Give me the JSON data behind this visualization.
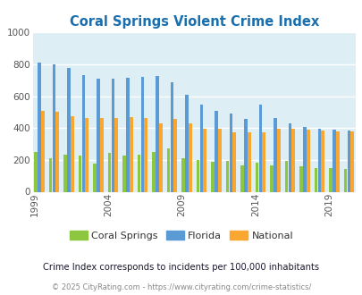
{
  "title": "Coral Springs Violent Crime Index",
  "years": [
    1999,
    2000,
    2001,
    2002,
    2003,
    2004,
    2005,
    2006,
    2007,
    2008,
    2009,
    2010,
    2011,
    2012,
    2013,
    2014,
    2015,
    2016,
    2017,
    2018,
    2019,
    2020
  ],
  "coral_springs": [
    250,
    210,
    235,
    225,
    175,
    245,
    225,
    235,
    250,
    270,
    210,
    200,
    190,
    195,
    165,
    180,
    165,
    195,
    160,
    150,
    150,
    145
  ],
  "florida": [
    810,
    800,
    775,
    735,
    710,
    710,
    715,
    720,
    725,
    690,
    610,
    545,
    510,
    490,
    460,
    545,
    465,
    430,
    405,
    395,
    390,
    385
  ],
  "national": [
    510,
    500,
    475,
    465,
    465,
    465,
    470,
    465,
    430,
    455,
    430,
    395,
    395,
    375,
    375,
    375,
    395,
    395,
    390,
    385,
    380,
    380
  ],
  "ylim": [
    0,
    1000
  ],
  "yticks": [
    0,
    200,
    400,
    600,
    800,
    1000
  ],
  "color_coral": "#8dc63f",
  "color_florida": "#5b9bd5",
  "color_national": "#faa732",
  "bg_color": "#ddeef4",
  "title_color": "#1a6faf",
  "subtitle": "Crime Index corresponds to incidents per 100,000 inhabitants",
  "footer": "© 2025 CityRating.com - https://www.cityrating.com/crime-statistics/",
  "legend_labels": [
    "Coral Springs",
    "Florida",
    "National"
  ],
  "xtick_years": [
    1999,
    2004,
    2009,
    2014,
    2019
  ],
  "subtitle_color": "#1a1a2e",
  "footer_color": "#888888"
}
